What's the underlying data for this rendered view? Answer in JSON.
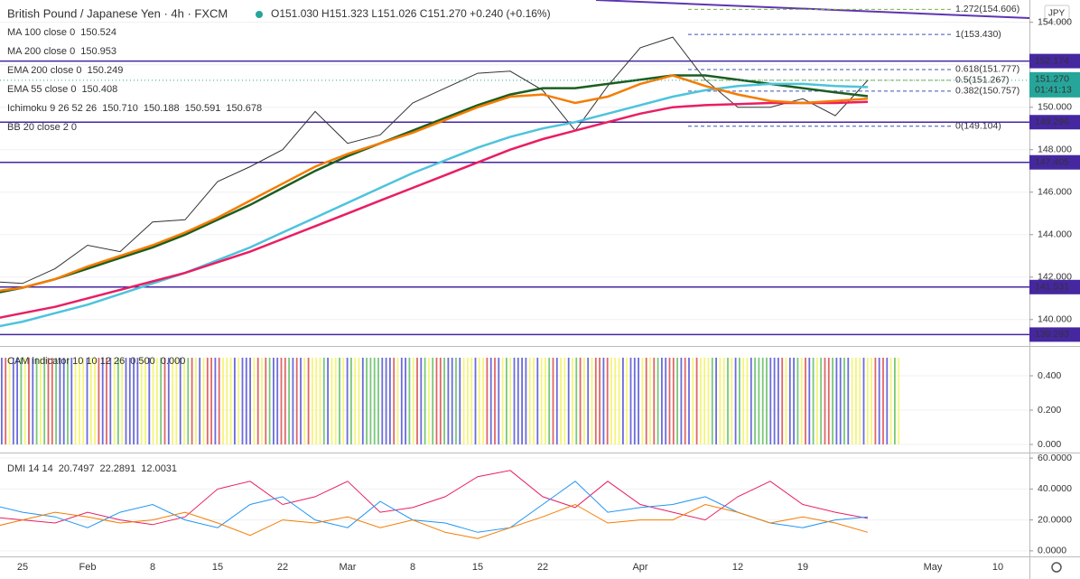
{
  "chart_data": [
    {
      "type": "line",
      "title": "British Pound / Japanese Yen · 4h · FXCM",
      "subtitle": "O151.030 H151.323 L151.026 C151.270 +0.240 (+0.16%)",
      "currency": "JPY",
      "ylim": [
        138.8,
        155.05
      ],
      "yticks": [
        {
          "value": 140,
          "label": "140.000"
        },
        {
          "value": 142,
          "label": "142.000"
        },
        {
          "value": 144,
          "label": "144.000"
        },
        {
          "value": 146,
          "label": "146.000"
        },
        {
          "value": 148,
          "label": "148.000"
        },
        {
          "value": 150,
          "label": "150.000"
        },
        {
          "value": 152,
          "label": "152.000"
        },
        {
          "value": 154,
          "label": "154.000"
        }
      ],
      "series": [
        {
          "color": "#333333",
          "values": [
            141.8,
            141.7,
            142.4,
            143.5,
            143.2,
            144.6,
            144.7,
            146.5,
            147.2,
            148.0,
            149.8,
            148.3,
            148.7,
            150.2,
            150.9,
            151.6,
            151.7,
            150.8,
            148.9,
            151.0,
            152.8,
            153.3,
            151.3,
            150.0,
            150.0,
            150.4,
            149.6,
            151.27,
            null,
            null,
            null,
            null,
            null
          ]
        },
        {
          "name": "MA 100 close 0",
          "legend_value": "150.524",
          "color": "#1b5e20",
          "values": [
            141.2,
            141.5,
            141.9,
            142.4,
            142.9,
            143.4,
            144.0,
            144.7,
            145.4,
            146.2,
            147.0,
            147.7,
            148.3,
            148.9,
            149.5,
            150.1,
            150.6,
            150.9,
            150.9,
            151.1,
            151.3,
            151.5,
            151.5,
            151.3,
            151.1,
            150.9,
            150.7,
            150.52,
            null,
            null,
            null,
            null,
            null
          ]
        },
        {
          "name": "MA 200 close 0",
          "legend_value": "150.953",
          "color": "#4dc3dc",
          "values": [
            139.6,
            139.9,
            140.3,
            140.7,
            141.2,
            141.7,
            142.2,
            142.8,
            143.4,
            144.1,
            144.8,
            145.5,
            146.2,
            146.9,
            147.5,
            148.1,
            148.6,
            149.0,
            149.3,
            149.7,
            150.1,
            150.5,
            150.8,
            151.0,
            151.1,
            151.1,
            151.0,
            150.95,
            null,
            null,
            null,
            null,
            null
          ]
        },
        {
          "name": "EMA 200 close 0",
          "legend_value": "150.249",
          "color": "#e91e63",
          "values": [
            140.0,
            140.3,
            140.6,
            141.0,
            141.4,
            141.8,
            142.2,
            142.7,
            143.2,
            143.8,
            144.4,
            145.0,
            145.6,
            146.2,
            146.8,
            147.4,
            148.0,
            148.5,
            148.9,
            149.3,
            149.7,
            150.0,
            150.1,
            150.15,
            150.2,
            150.2,
            150.2,
            150.25,
            null,
            null,
            null,
            null,
            null
          ]
        },
        {
          "name": "EMA 55 close 0",
          "legend_value": "150.408",
          "color": "#f57c00",
          "values": [
            141.3,
            141.5,
            141.9,
            142.5,
            143.0,
            143.5,
            144.1,
            144.8,
            145.6,
            146.4,
            147.2,
            147.8,
            148.3,
            148.8,
            149.4,
            150.0,
            150.5,
            150.6,
            150.2,
            150.5,
            151.1,
            151.5,
            151.0,
            150.6,
            150.3,
            150.2,
            150.3,
            150.4,
            null,
            null,
            null,
            null,
            null
          ]
        }
      ],
      "legend_extra": [
        {
          "name": "Ichimoku 9 26 52 26",
          "values": [
            "150.710",
            "150.188",
            "150.591",
            "150.678"
          ],
          "colors": [
            "#2962ff",
            "#880e4f",
            "#388e3c",
            "#e53935"
          ]
        },
        {
          "name": "BB 20 close 2 0",
          "values": [],
          "colors": []
        }
      ],
      "levels": [
        152.174,
        149.296,
        147.405,
        141.531,
        139.293
      ],
      "level_color": "#4527a0",
      "fib_levels": [
        {
          "value": 154.606,
          "label": "1.272(154.606)",
          "color": "#7cb342"
        },
        {
          "value": 153.43,
          "label": "1(153.430)",
          "color": "#3f51b5"
        },
        {
          "value": 151.777,
          "label": "0.618(151.777)",
          "color": "#3f51b5"
        },
        {
          "value": 151.267,
          "label": "0.5(151.267)",
          "color": "#7cb342"
        },
        {
          "value": 150.757,
          "label": "0.382(150.757)",
          "color": "#3f51b5"
        },
        {
          "value": 149.104,
          "label": "0(149.104)",
          "color": "#3f51b5"
        }
      ],
      "last_price": {
        "value": 151.27,
        "label": "151.270",
        "countdown": "01:41:13",
        "color": "#26a69a"
      }
    },
    {
      "type": "stripes",
      "title": "CAM indicator 10 10 12 26",
      "legend_values": [
        {
          "label": "0.500",
          "color": "#1b8a1b"
        },
        {
          "label": "0.000",
          "color": "#29b6f6"
        }
      ],
      "ylim": [
        -0.042,
        0.558
      ],
      "yticks": [
        {
          "value": 0,
          "label": "0.000"
        },
        {
          "value": 0.2,
          "label": "0.200"
        },
        {
          "value": 0.4,
          "label": "0.400"
        }
      ]
    },
    {
      "type": "line",
      "title": "DMI 14 14",
      "categories": [
        null,
        "25",
        null,
        "Feb",
        null,
        "8",
        null,
        "15",
        null,
        "22",
        null,
        "Mar",
        null,
        "8",
        null,
        "15",
        null,
        "22",
        null,
        null,
        "Apr",
        null,
        null,
        "12",
        null,
        "19",
        null,
        null,
        null,
        "May",
        null,
        "10",
        null
      ],
      "ylim": [
        -3,
        63
      ],
      "yticks": [
        {
          "value": 0,
          "label": "0.0000"
        },
        {
          "value": 20,
          "label": "20.0000"
        },
        {
          "value": 40,
          "label": "40.0000"
        },
        {
          "value": 60,
          "label": "60.0000"
        }
      ],
      "series": [
        {
          "legend_value": "20.7497",
          "color": "#e91e63",
          "values": [
            22,
            20,
            18,
            25,
            20,
            17,
            22,
            40,
            45,
            30,
            35,
            45,
            25,
            28,
            35,
            48,
            52,
            35,
            28,
            45,
            30,
            25,
            20,
            35,
            45,
            30,
            25,
            21,
            null,
            null,
            null,
            null,
            null
          ]
        },
        {
          "legend_value": "22.2891",
          "color": "#2196f3",
          "values": [
            30,
            25,
            22,
            15,
            25,
            30,
            20,
            15,
            30,
            35,
            20,
            15,
            32,
            20,
            18,
            12,
            15,
            30,
            45,
            25,
            28,
            30,
            35,
            25,
            18,
            15,
            20,
            22,
            null,
            null,
            null,
            null,
            null
          ]
        },
        {
          "legend_value": "12.0031",
          "color": "#f57c00",
          "values": [
            15,
            20,
            25,
            22,
            18,
            20,
            25,
            18,
            10,
            20,
            18,
            22,
            15,
            20,
            12,
            8,
            15,
            22,
            30,
            18,
            20,
            20,
            30,
            25,
            18,
            22,
            18,
            12,
            null,
            null,
            null,
            null,
            null
          ]
        }
      ]
    }
  ]
}
